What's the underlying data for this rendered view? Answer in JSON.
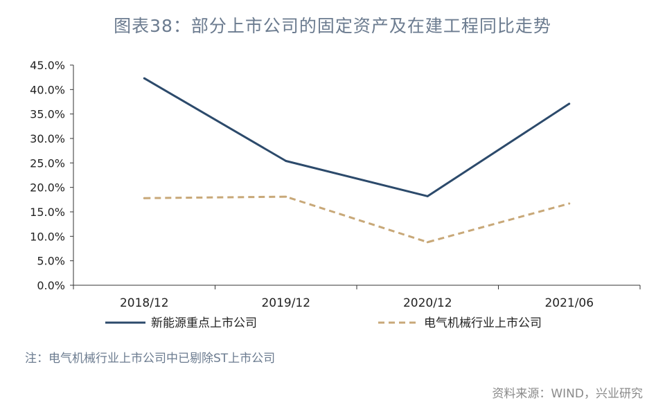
{
  "title": "图表38：部分上市公司的固定资产及在建工程同比走势",
  "note": "注：电气机械行业上市公司中已剔除ST上市公司",
  "source": "资料来源：WIND，兴业研究",
  "colors": {
    "series1": "#2c4a6b",
    "series2": "#c8a878",
    "axis": "#333333",
    "title": "#6b7b8f"
  },
  "chart_data": {
    "type": "line",
    "categories": [
      "2018/12",
      "2019/12",
      "2020/12",
      "2021/06"
    ],
    "ylim": [
      0,
      45
    ],
    "yticks": [
      0,
      5,
      10,
      15,
      20,
      25,
      30,
      35,
      40,
      45
    ],
    "ytick_labels": [
      "0.0%",
      "5.0%",
      "10.0%",
      "15.0%",
      "20.0%",
      "25.0%",
      "30.0%",
      "35.0%",
      "40.0%",
      "45.0%"
    ],
    "grid": false,
    "legend": "bottom",
    "series": [
      {
        "name": "新能源重点上市公司",
        "values": [
          42.3,
          25.4,
          18.2,
          37.1
        ],
        "style": "solid"
      },
      {
        "name": "电气机械行业上市公司",
        "values": [
          17.8,
          18.1,
          8.8,
          16.7
        ],
        "style": "dashed"
      }
    ]
  }
}
